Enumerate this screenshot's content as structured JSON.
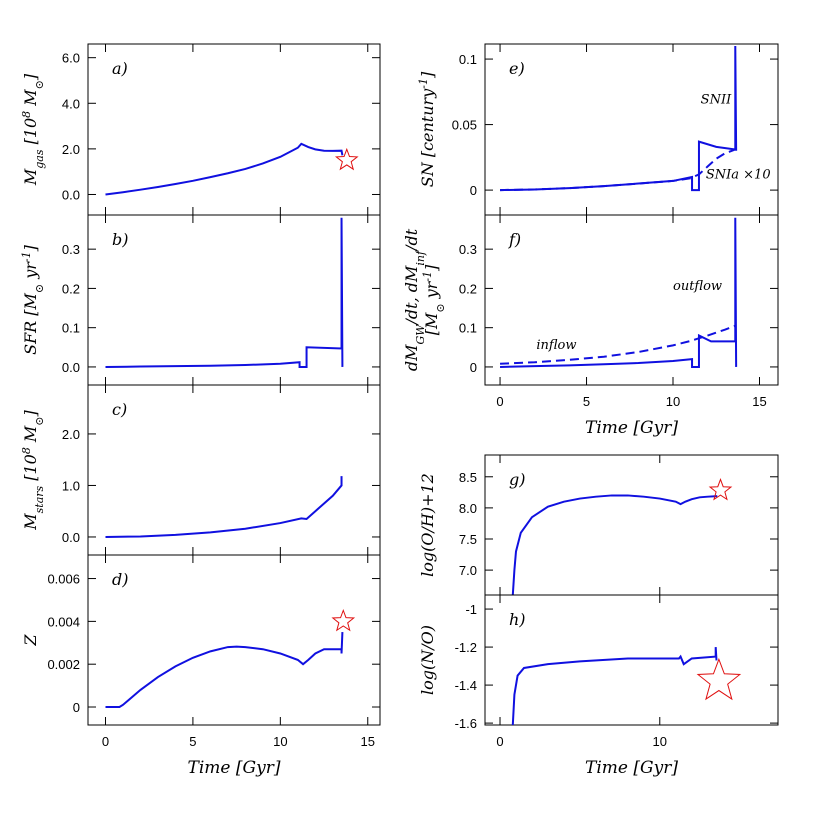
{
  "chart_data": [
    {
      "type": "line",
      "label": "a)",
      "xlim": [
        -1,
        15.7
      ],
      "ylim": [
        -0.9,
        6.6
      ],
      "xticks": [
        0,
        5,
        10,
        15
      ],
      "xticklabels": false,
      "yticks": [
        {
          "value": 0,
          "label": "0.0"
        },
        {
          "value": 2,
          "label": "2.0"
        },
        {
          "value": 4,
          "label": "4.0"
        },
        {
          "value": 6,
          "label": "6.0"
        }
      ],
      "ylabel": [
        [
          {
            "text": "M"
          },
          {
            "text": "gas",
            "sub": true
          },
          {
            "text": " [10"
          },
          {
            "text": "8",
            "sup": true
          },
          {
            "text": " M"
          },
          {
            "text": "⊙",
            "sub": true
          },
          {
            "text": "]"
          }
        ]
      ],
      "series": [
        {
          "color": "#1010e0",
          "dashed": false,
          "x": [
            0,
            1,
            2,
            3,
            4,
            5,
            6,
            7,
            8,
            9,
            10,
            11,
            11.2,
            11.6,
            12,
            12.5,
            13,
            13.5,
            13.55
          ],
          "values": [
            0,
            0.1,
            0.21,
            0.33,
            0.46,
            0.6,
            0.76,
            0.93,
            1.12,
            1.36,
            1.65,
            2.05,
            2.22,
            2.08,
            1.98,
            1.92,
            1.91,
            1.92,
            1.72
          ]
        }
      ],
      "points": [
        {
          "x": 13.8,
          "y": 1.5,
          "color": "#e01010",
          "marker": "star",
          "size": "small"
        }
      ]
    },
    {
      "type": "line",
      "label": "b)",
      "xlim": [
        -1,
        15.7
      ],
      "ylim": [
        -0.046,
        0.387
      ],
      "xticks": [
        0,
        5,
        10,
        15
      ],
      "xticklabels": false,
      "yticks": [
        {
          "value": 0,
          "label": "0.0"
        },
        0.1,
        0.2,
        0.3
      ],
      "ylabel": [
        [
          {
            "text": "SFR [M"
          },
          {
            "text": "⊙",
            "sub": true
          },
          {
            "text": " yr"
          },
          {
            "text": "-1",
            "sup": true
          },
          {
            "text": "]"
          }
        ]
      ],
      "series": [
        {
          "color": "#1010e0",
          "dashed": false,
          "x": [
            0,
            2,
            4,
            6,
            8,
            10,
            11.1,
            11.1,
            11.5,
            11.5,
            13.5,
            13.5,
            13.55
          ],
          "values": [
            0,
            0.001,
            0.002,
            0.003,
            0.005,
            0.008,
            0.012,
            0,
            0,
            0.05,
            0.047,
            0.38,
            0
          ]
        }
      ],
      "points": []
    },
    {
      "type": "line",
      "label": "c)",
      "xlim": [
        -1,
        15.7
      ],
      "ylim": [
        -0.35,
        2.95
      ],
      "xticks": [
        0,
        5,
        10,
        15
      ],
      "xticklabels": false,
      "yticks": [
        {
          "value": 0,
          "label": "0.0"
        },
        {
          "value": 1,
          "label": "1.0"
        },
        {
          "value": 2,
          "label": "2.0"
        }
      ],
      "ylabel": [
        [
          {
            "text": "M"
          },
          {
            "text": "stars",
            "sub": true
          },
          {
            "text": " [10"
          },
          {
            "text": "8",
            "sup": true
          },
          {
            "text": " M"
          },
          {
            "text": "⊙",
            "sub": true
          },
          {
            "text": "]"
          }
        ]
      ],
      "series": [
        {
          "color": "#1010e0",
          "dashed": false,
          "x": [
            0,
            2,
            4,
            6,
            8,
            10,
            11.2,
            11.5,
            12,
            13,
            13.5,
            13.5
          ],
          "values": [
            0,
            0.01,
            0.04,
            0.09,
            0.16,
            0.27,
            0.36,
            0.35,
            0.5,
            0.8,
            1.0,
            1.18
          ]
        }
      ],
      "points": []
    },
    {
      "type": "line",
      "label": "d)",
      "xlim": [
        -1,
        15.7
      ],
      "ylim": [
        -0.00084,
        0.0071
      ],
      "xticks": [
        0,
        5,
        10,
        15
      ],
      "xticklabels": true,
      "yticks": [
        0,
        0.002,
        0.004,
        0.006
      ],
      "xlabel": "Time [Gyr]",
      "ylabel": [
        [
          {
            "text": "Z"
          }
        ]
      ],
      "series": [
        {
          "color": "#1010e0",
          "dashed": false,
          "x": [
            0,
            0.8,
            1,
            2,
            3,
            4,
            5,
            6,
            7,
            7.5,
            8,
            9,
            10,
            11,
            11.3,
            11.6,
            12,
            12.5,
            13.5,
            13.5,
            13.55
          ],
          "values": [
            0,
            0,
            0.0001,
            0.0008,
            0.0014,
            0.0019,
            0.0023,
            0.0026,
            0.0028,
            0.00282,
            0.0028,
            0.0027,
            0.0025,
            0.0022,
            0.002,
            0.0022,
            0.0025,
            0.0027,
            0.0027,
            0.0025,
            0.0035
          ]
        }
      ],
      "points": [
        {
          "x": 13.6,
          "y": 0.004,
          "color": "#e01010",
          "marker": "star",
          "size": "small"
        }
      ]
    },
    {
      "type": "line",
      "label": "e)",
      "xlim": [
        -0.87,
        16.07
      ],
      "ylim": [
        -0.019,
        0.1115
      ],
      "xticks": [
        0,
        5,
        10,
        15
      ],
      "xticklabels": false,
      "yticks": [
        0,
        0.05,
        0.1
      ],
      "ylabel": [
        [
          {
            "text": "SN [century"
          },
          {
            "text": "-1",
            "sup": true
          },
          {
            "text": "]"
          }
        ]
      ],
      "series": [
        {
          "color": "#1010e0",
          "dashed": false,
          "x": [
            0,
            2,
            4,
            6,
            8,
            10,
            11.1,
            11.1,
            11.5,
            11.5,
            12.5,
            13.6,
            13.6,
            13.65
          ],
          "values": [
            0,
            0.0005,
            0.0015,
            0.003,
            0.005,
            0.007,
            0.01,
            0,
            0,
            0.037,
            0.033,
            0.031,
            0.11,
            0.03
          ]
        },
        {
          "color": "#1010e0",
          "dashed": true,
          "x": [
            0,
            2,
            4,
            6,
            8,
            10,
            11,
            11.5,
            12,
            12.5,
            13,
            13.6
          ],
          "values": [
            0,
            0.0005,
            0.0015,
            0.003,
            0.005,
            0.007,
            0.009,
            0.012,
            0.018,
            0.024,
            0.028,
            0.031
          ]
        }
      ],
      "annotations": [
        {
          "text": "SNII",
          "x": 11.6,
          "y": 0.066
        },
        {
          "text": "SNIa ×10",
          "x": 11.9,
          "y": 0.009
        }
      ],
      "points": []
    },
    {
      "type": "line",
      "label": "f)",
      "xlim": [
        -0.87,
        16.07
      ],
      "ylim": [
        -0.046,
        0.387
      ],
      "xticks": [
        0,
        5,
        10,
        15
      ],
      "xticklabels": true,
      "yticks": [
        0,
        0.1,
        0.2,
        0.3
      ],
      "xlabel": "Time [Gyr]",
      "ylabel": [
        [
          {
            "text": "dM"
          },
          {
            "text": "GW",
            "sub": true
          },
          {
            "text": "/dt, dM"
          },
          {
            "text": "inf",
            "sub": true
          },
          {
            "text": "/dt"
          }
        ],
        [
          {
            "text": "[M"
          },
          {
            "text": "⊙",
            "sub": true
          },
          {
            "text": " yr"
          },
          {
            "text": "-1",
            "sup": true
          },
          {
            "text": "]"
          }
        ]
      ],
      "series": [
        {
          "color": "#1010e0",
          "dashed": false,
          "x": [
            0,
            2,
            4,
            6,
            8,
            10,
            11.1,
            11.1,
            11.5,
            11.5,
            12.2,
            13.6,
            13.6,
            13.65
          ],
          "values": [
            0,
            0.002,
            0.004,
            0.007,
            0.01,
            0.015,
            0.02,
            0,
            0,
            0.08,
            0.065,
            0.065,
            0.38,
            0
          ]
        },
        {
          "color": "#1010e0",
          "dashed": true,
          "x": [
            0,
            2,
            4,
            6,
            8,
            10,
            11,
            12,
            13,
            13.6
          ],
          "values": [
            0.008,
            0.012,
            0.018,
            0.026,
            0.038,
            0.055,
            0.066,
            0.08,
            0.095,
            0.105
          ]
        }
      ],
      "annotations": [
        {
          "text": "inflow",
          "x": 2.1,
          "y": 0.046
        },
        {
          "text": "outflow",
          "x": 10,
          "y": 0.196
        }
      ],
      "points": []
    },
    {
      "type": "line",
      "label": "g)",
      "xlim": [
        -0.94,
        17.4
      ],
      "ylim": [
        6.6,
        8.85
      ],
      "xticks": [
        0,
        10
      ],
      "xticklabels": false,
      "yticks": [
        {
          "value": 7,
          "label": "7.0"
        },
        7.5,
        {
          "value": 8,
          "label": "8.0"
        },
        8.5
      ],
      "ylabel": [
        [
          {
            "text": "log(O/H)+12"
          }
        ]
      ],
      "series": [
        {
          "color": "#1010e0",
          "dashed": false,
          "x": [
            0.8,
            0.9,
            1,
            1.3,
            2,
            3,
            4,
            5,
            6,
            7,
            8,
            9,
            10,
            11,
            11.3,
            11.6,
            12,
            12.5,
            13,
            13.6
          ],
          "values": [
            6.6,
            7.0,
            7.3,
            7.6,
            7.85,
            8.02,
            8.1,
            8.15,
            8.18,
            8.2,
            8.2,
            8.18,
            8.15,
            8.1,
            8.06,
            8.1,
            8.14,
            8.17,
            8.18,
            8.19
          ]
        }
      ],
      "points": [
        {
          "x": 13.8,
          "y": 8.28,
          "color": "#e01010",
          "marker": "star",
          "size": "small"
        }
      ]
    },
    {
      "type": "line",
      "label": "h)",
      "xlim": [
        -0.94,
        17.4
      ],
      "ylim": [
        -1.61,
        -0.926
      ],
      "xticks": [
        0,
        10
      ],
      "xticklabels": true,
      "yticks": [
        -1,
        -1.2,
        -1.4,
        -1.6
      ],
      "xlabel": "Time [Gyr]",
      "ylabel": [
        [
          {
            "text": "log(N/O)"
          }
        ]
      ],
      "series": [
        {
          "color": "#1010e0",
          "dashed": false,
          "x": [
            0.8,
            0.9,
            1.1,
            1.5,
            3,
            5,
            8,
            11.2,
            11.3,
            11.5,
            12,
            13.5,
            13.5,
            13.55
          ],
          "values": [
            -1.61,
            -1.45,
            -1.35,
            -1.31,
            -1.29,
            -1.275,
            -1.26,
            -1.26,
            -1.25,
            -1.29,
            -1.26,
            -1.25,
            -1.2,
            -1.27
          ]
        }
      ],
      "points": [
        {
          "x": 13.7,
          "y": -1.38,
          "color": "#e01010",
          "marker": "star",
          "size": "large"
        }
      ]
    }
  ]
}
